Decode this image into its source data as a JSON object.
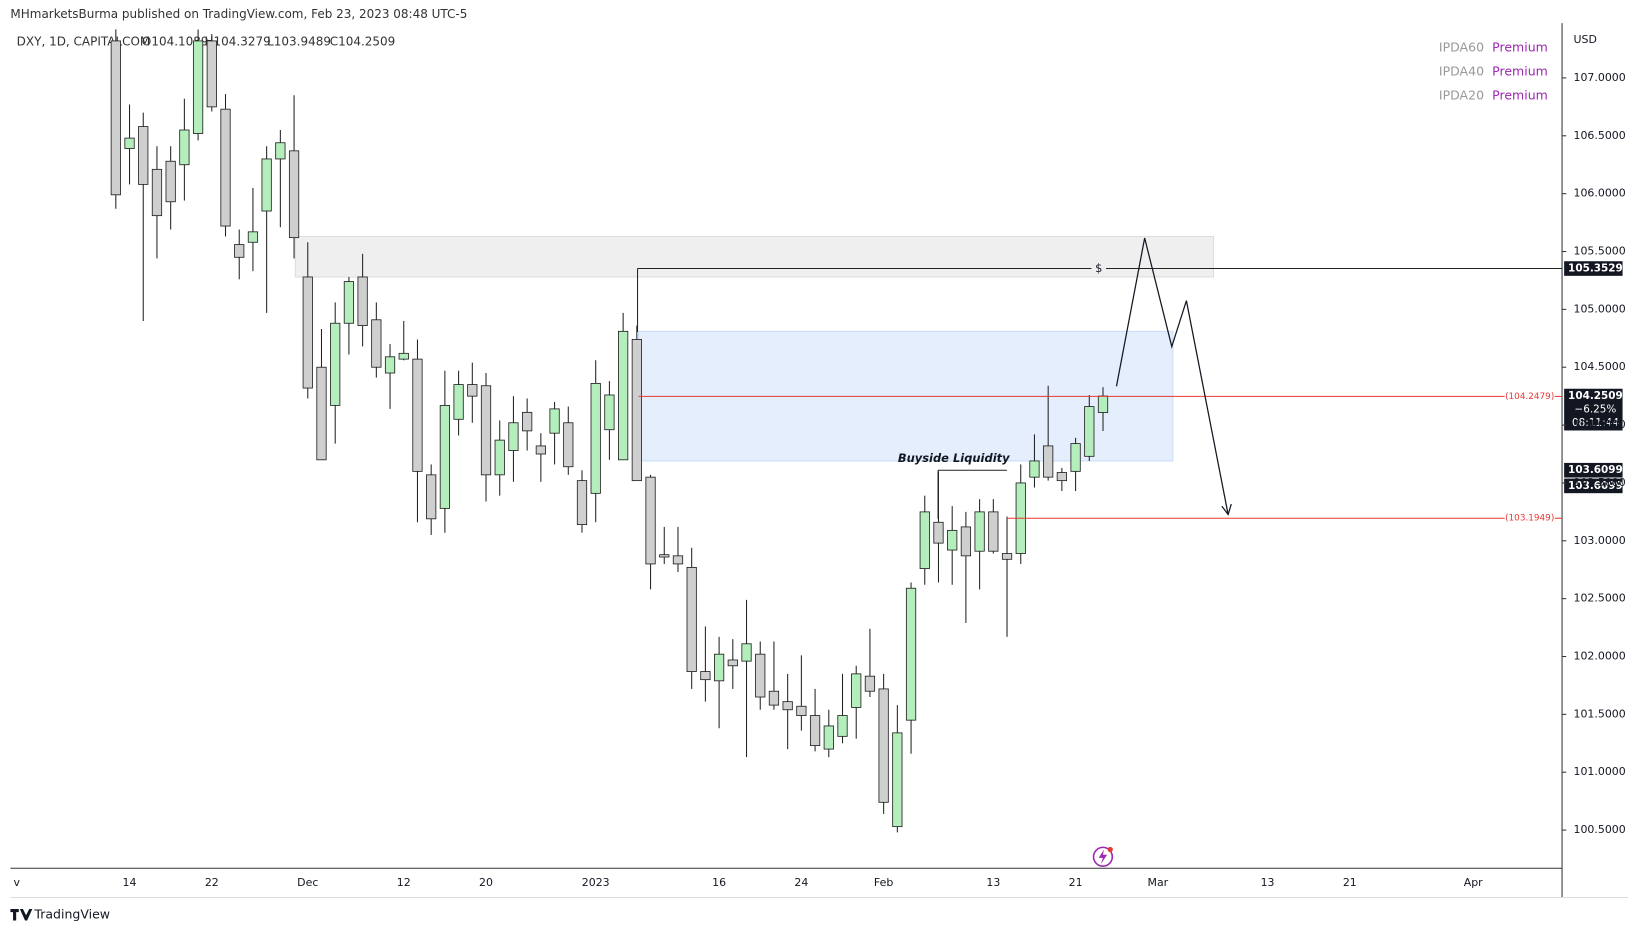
{
  "header": {
    "publisher": "MHmarketsBurma published on TradingView.com, Feb 23, 2023 08:48 UTC-5",
    "symbol": "DXY, 1D, CAPITALCOM",
    "ohlc": [
      "O104.1089",
      "H104.3279",
      "L103.9489",
      "C104.2509"
    ],
    "legend": [
      {
        "name": "IPDA60",
        "status": "Premium"
      },
      {
        "name": "IPDA40",
        "status": "Premium"
      },
      {
        "name": "IPDA20",
        "status": "Premium"
      }
    ],
    "currency": "USD",
    "brand": "TradingView"
  },
  "chart_data": {
    "type": "candlestick",
    "categories": [
      null,
      "14",
      null,
      null,
      null,
      null,
      null,
      "22",
      null,
      null,
      null,
      null,
      null,
      null,
      "Dec",
      null,
      null,
      null,
      null,
      null,
      null,
      "12",
      null,
      null,
      null,
      null,
      null,
      "20",
      null,
      null,
      null,
      null,
      null,
      null,
      null,
      "2023",
      null,
      null,
      null,
      null,
      null,
      null,
      null,
      null,
      "16",
      null,
      null,
      null,
      null,
      null,
      "24",
      null,
      null,
      null,
      null,
      null,
      "Feb",
      null,
      null,
      null,
      null,
      null,
      null,
      null,
      "13",
      null,
      null,
      null,
      null,
      null,
      "21",
      null,
      null,
      null,
      null,
      null,
      "Mar",
      null,
      null,
      null,
      null,
      null,
      null,
      null,
      "13",
      null,
      null,
      null,
      null,
      null,
      "21",
      null,
      null,
      null,
      null,
      null,
      null,
      null,
      null,
      "Apr",
      null,
      null,
      null,
      null,
      null,
      null
    ],
    "open": [
      107.32,
      106.39,
      106.58,
      106.21,
      106.28,
      106.25,
      106.52,
      107.32,
      106.73,
      105.56,
      105.58,
      105.85,
      106.3,
      106.37,
      105.28,
      104.5,
      104.17,
      104.88,
      105.28,
      104.91,
      104.45,
      104.57,
      104.57,
      103.57,
      103.28,
      104.05,
      104.35,
      104.34,
      103.57,
      103.78,
      104.11,
      103.82,
      103.93,
      104.02,
      103.52,
      103.41,
      103.96,
      103.7,
      104.74,
      103.55,
      102.88,
      102.87,
      102.77,
      101.87,
      101.79,
      101.97,
      101.96,
      102.02,
      101.7,
      101.61,
      101.57,
      101.49,
      101.2,
      101.31,
      101.56,
      101.83,
      101.72,
      100.53,
      101.45,
      102.76,
      103.16,
      102.92,
      103.12,
      102.91,
      103.25,
      102.89,
      102.89,
      103.55,
      103.82,
      103.59,
      103.6,
      103.73,
      104.1089,
      null,
      null,
      null,
      null,
      null,
      null,
      null,
      null,
      null,
      null,
      null,
      null,
      null,
      null,
      null,
      null,
      null,
      null,
      null,
      null,
      null,
      null,
      null,
      null,
      null,
      null,
      null,
      null,
      null,
      null,
      null,
      null,
      null
    ],
    "high": [
      107.6,
      106.77,
      106.7,
      106.41,
      106.41,
      106.82,
      107.42,
      107.38,
      106.86,
      105.69,
      106.05,
      106.41,
      106.55,
      106.85,
      105.58,
      104.83,
      105.06,
      105.28,
      105.48,
      105.06,
      104.7,
      104.9,
      104.74,
      103.66,
      104.47,
      104.47,
      104.54,
      104.45,
      104.04,
      104.25,
      104.23,
      103.93,
      104.2,
      104.16,
      103.61,
      104.56,
      104.38,
      104.97,
      104.86,
      103.57,
      103.12,
      103.12,
      102.94,
      102.26,
      102.17,
      102.15,
      102.49,
      102.13,
      102.13,
      101.85,
      102.01,
      101.72,
      101.54,
      101.85,
      101.92,
      102.24,
      101.85,
      101.58,
      102.64,
      103.39,
      103.6,
      103.3,
      103.25,
      103.36,
      103.36,
      103.21,
      103.66,
      103.92,
      104.34,
      103.63,
      103.89,
      104.26,
      104.3279,
      null,
      null,
      null,
      null,
      null,
      null,
      null,
      null,
      null,
      null,
      null,
      null,
      null,
      null,
      null,
      null,
      null,
      null,
      null,
      null,
      null,
      null,
      null,
      null,
      null,
      null,
      null,
      null,
      null,
      null,
      null,
      null,
      null
    ],
    "low": [
      105.87,
      106.08,
      104.9,
      105.44,
      105.69,
      105.94,
      106.46,
      106.71,
      105.63,
      105.26,
      105.33,
      104.97,
      105.71,
      105.44,
      104.23,
      103.7,
      103.84,
      104.61,
      104.68,
      104.41,
      104.14,
      104.56,
      103.16,
      103.05,
      103.07,
      103.91,
      104.02,
      103.34,
      103.39,
      103.51,
      103.78,
      103.51,
      103.66,
      103.57,
      103.07,
      103.16,
      103.7,
      103.7,
      103.52,
      102.58,
      102.8,
      102.73,
      101.72,
      101.61,
      101.38,
      101.72,
      101.13,
      101.54,
      101.54,
      101.2,
      101.36,
      101.18,
      101.13,
      101.25,
      101.29,
      101.65,
      100.64,
      100.48,
      101.16,
      102.62,
      102.64,
      102.62,
      102.29,
      102.58,
      102.89,
      102.17,
      102.8,
      103.46,
      103.52,
      103.43,
      103.43,
      103.69,
      103.9489,
      null,
      null,
      null,
      null,
      null,
      null,
      null,
      null,
      null,
      null,
      null,
      null,
      null,
      null,
      null,
      null,
      null,
      null,
      null,
      null,
      null,
      null,
      null,
      null,
      null,
      null,
      null,
      null,
      null,
      null,
      null,
      null,
      null
    ],
    "close": [
      105.99,
      106.48,
      106.08,
      105.81,
      105.93,
      106.55,
      107.32,
      106.75,
      105.72,
      105.45,
      105.67,
      106.3,
      106.44,
      105.62,
      104.32,
      103.7,
      104.88,
      105.24,
      104.86,
      104.5,
      104.59,
      104.62,
      103.6,
      103.19,
      104.17,
      104.35,
      104.25,
      103.57,
      103.87,
      104.02,
      103.95,
      103.75,
      104.14,
      103.64,
      103.14,
      104.36,
      104.26,
      104.81,
      103.52,
      102.8,
      102.86,
      102.8,
      101.87,
      101.8,
      102.02,
      101.92,
      102.11,
      101.65,
      101.58,
      101.54,
      101.49,
      101.23,
      101.4,
      101.49,
      101.85,
      101.7,
      100.74,
      101.34,
      102.59,
      103.25,
      102.98,
      103.09,
      102.87,
      103.25,
      102.91,
      102.84,
      103.5,
      103.69,
      103.55,
      103.52,
      103.84,
      104.16,
      104.2509,
      null,
      null,
      null,
      null,
      null,
      null,
      null,
      null,
      null,
      null,
      null,
      null,
      null,
      null,
      null,
      null,
      null,
      null,
      null,
      null,
      null,
      null,
      null,
      null,
      null,
      null,
      null,
      null,
      null,
      null,
      null,
      null,
      null
    ],
    "up_color": "#b4eebc",
    "down_color": "#cfcfcf",
    "ylim": [
      100.17,
      107.42
    ],
    "yticks": [
      {
        "value": 100.5,
        "label": "100.5000"
      },
      {
        "value": 101.0,
        "label": "101.0000"
      },
      {
        "value": 101.5,
        "label": "101.5000"
      },
      {
        "value": 102.0,
        "label": "102.0000"
      },
      {
        "value": 102.5,
        "label": "102.5000"
      },
      {
        "value": 103.0,
        "label": "103.0000"
      },
      {
        "value": 103.5,
        "label": "103.5000"
      },
      {
        "value": 104.0,
        "label": "104.0000"
      },
      {
        "value": 104.5,
        "label": "104.5000"
      },
      {
        "value": 105.0,
        "label": "105.0000"
      },
      {
        "value": 105.5,
        "label": "105.5000"
      },
      {
        "value": 106.0,
        "label": "106.0000"
      },
      {
        "value": 106.5,
        "label": "106.5000"
      },
      {
        "value": 107.0,
        "label": "107.0000"
      }
    ],
    "grid": false,
    "zones": [
      {
        "top": 105.63,
        "bottom": 105.28,
        "color": "#efeff0"
      },
      {
        "top": 104.81,
        "bottom": 103.69,
        "color": "#e4eefc"
      }
    ],
    "levels": [
      {
        "value": 104.2479,
        "label": "(104.2479)",
        "color": "#e53935"
      },
      {
        "value": 103.1949,
        "label": "(103.1949)",
        "color": "#e53935"
      }
    ],
    "liquidity_line": {
      "value": 105.3529,
      "label": "105.3529",
      "marker": "$"
    },
    "buyside": {
      "value": 103.6099,
      "text": "Buyside Liquidity",
      "tags": [
        "103.6099",
        "103.6099"
      ]
    },
    "last_price": {
      "change": "−6.25%",
      "countdown": "08:11:44"
    }
  }
}
